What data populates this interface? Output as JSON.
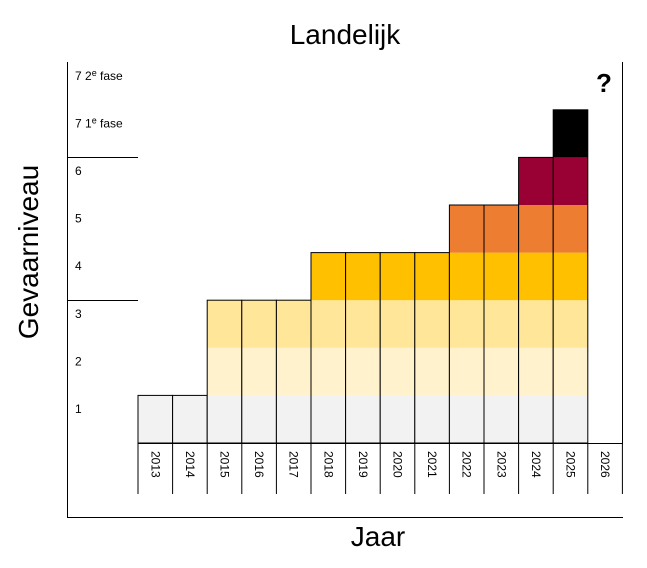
{
  "chart_data": {
    "type": "heatmap",
    "title": "Landelijk",
    "xlabel": "Jaar",
    "ylabel": "Gevaarniveau",
    "years": [
      "2013",
      "2014",
      "2015",
      "2016",
      "2017",
      "2018",
      "2019",
      "2020",
      "2021",
      "2022",
      "2023",
      "2024",
      "2025",
      "2026"
    ],
    "levels": [
      "1",
      "2",
      "3",
      "4",
      "5",
      "6",
      "7 1e fase",
      "7 2e fase"
    ],
    "level_colors": {
      "1": "#f2f2f2",
      "2": "#fff2cc",
      "3": "#ffe699",
      "4": "#ffc000",
      "5": "#ed7d31",
      "6": "#990033",
      "7 1e fase": "#000000"
    },
    "max_level_per_year": [
      {
        "year": "2013",
        "level": 1
      },
      {
        "year": "2014",
        "level": 1
      },
      {
        "year": "2015",
        "level": 3
      },
      {
        "year": "2016",
        "level": 3
      },
      {
        "year": "2017",
        "level": 3
      },
      {
        "year": "2018",
        "level": 4
      },
      {
        "year": "2019",
        "level": 4
      },
      {
        "year": "2020",
        "level": 4
      },
      {
        "year": "2021",
        "level": 4
      },
      {
        "year": "2022",
        "level": 5
      },
      {
        "year": "2023",
        "level": 5
      },
      {
        "year": "2024",
        "level": 6
      },
      {
        "year": "2025",
        "level": 7
      },
      {
        "year": "2026",
        "level": 0
      }
    ],
    "annotations": [
      "?"
    ]
  }
}
